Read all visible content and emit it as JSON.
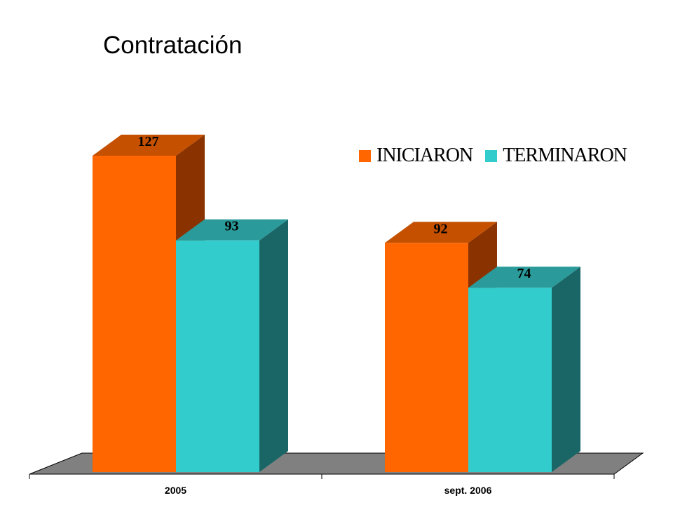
{
  "chart_data": {
    "type": "bar",
    "title": "Contratación",
    "categories": [
      "2005",
      "sept. 2006"
    ],
    "series": [
      {
        "name": "INICIARON",
        "values": [
          127,
          92
        ]
      },
      {
        "name": "TERMINARON",
        "values": [
          93,
          74
        ]
      }
    ],
    "ylim": [
      0,
      140
    ],
    "grid": false,
    "legend_position": "top-right",
    "colors": {
      "series": [
        "#ff6600",
        "#33cccc"
      ],
      "series_top": [
        "#c45000",
        "#2a9a9a"
      ],
      "series_side": [
        "#8b3300",
        "#1a6666"
      ],
      "floor": "#808080"
    }
  }
}
